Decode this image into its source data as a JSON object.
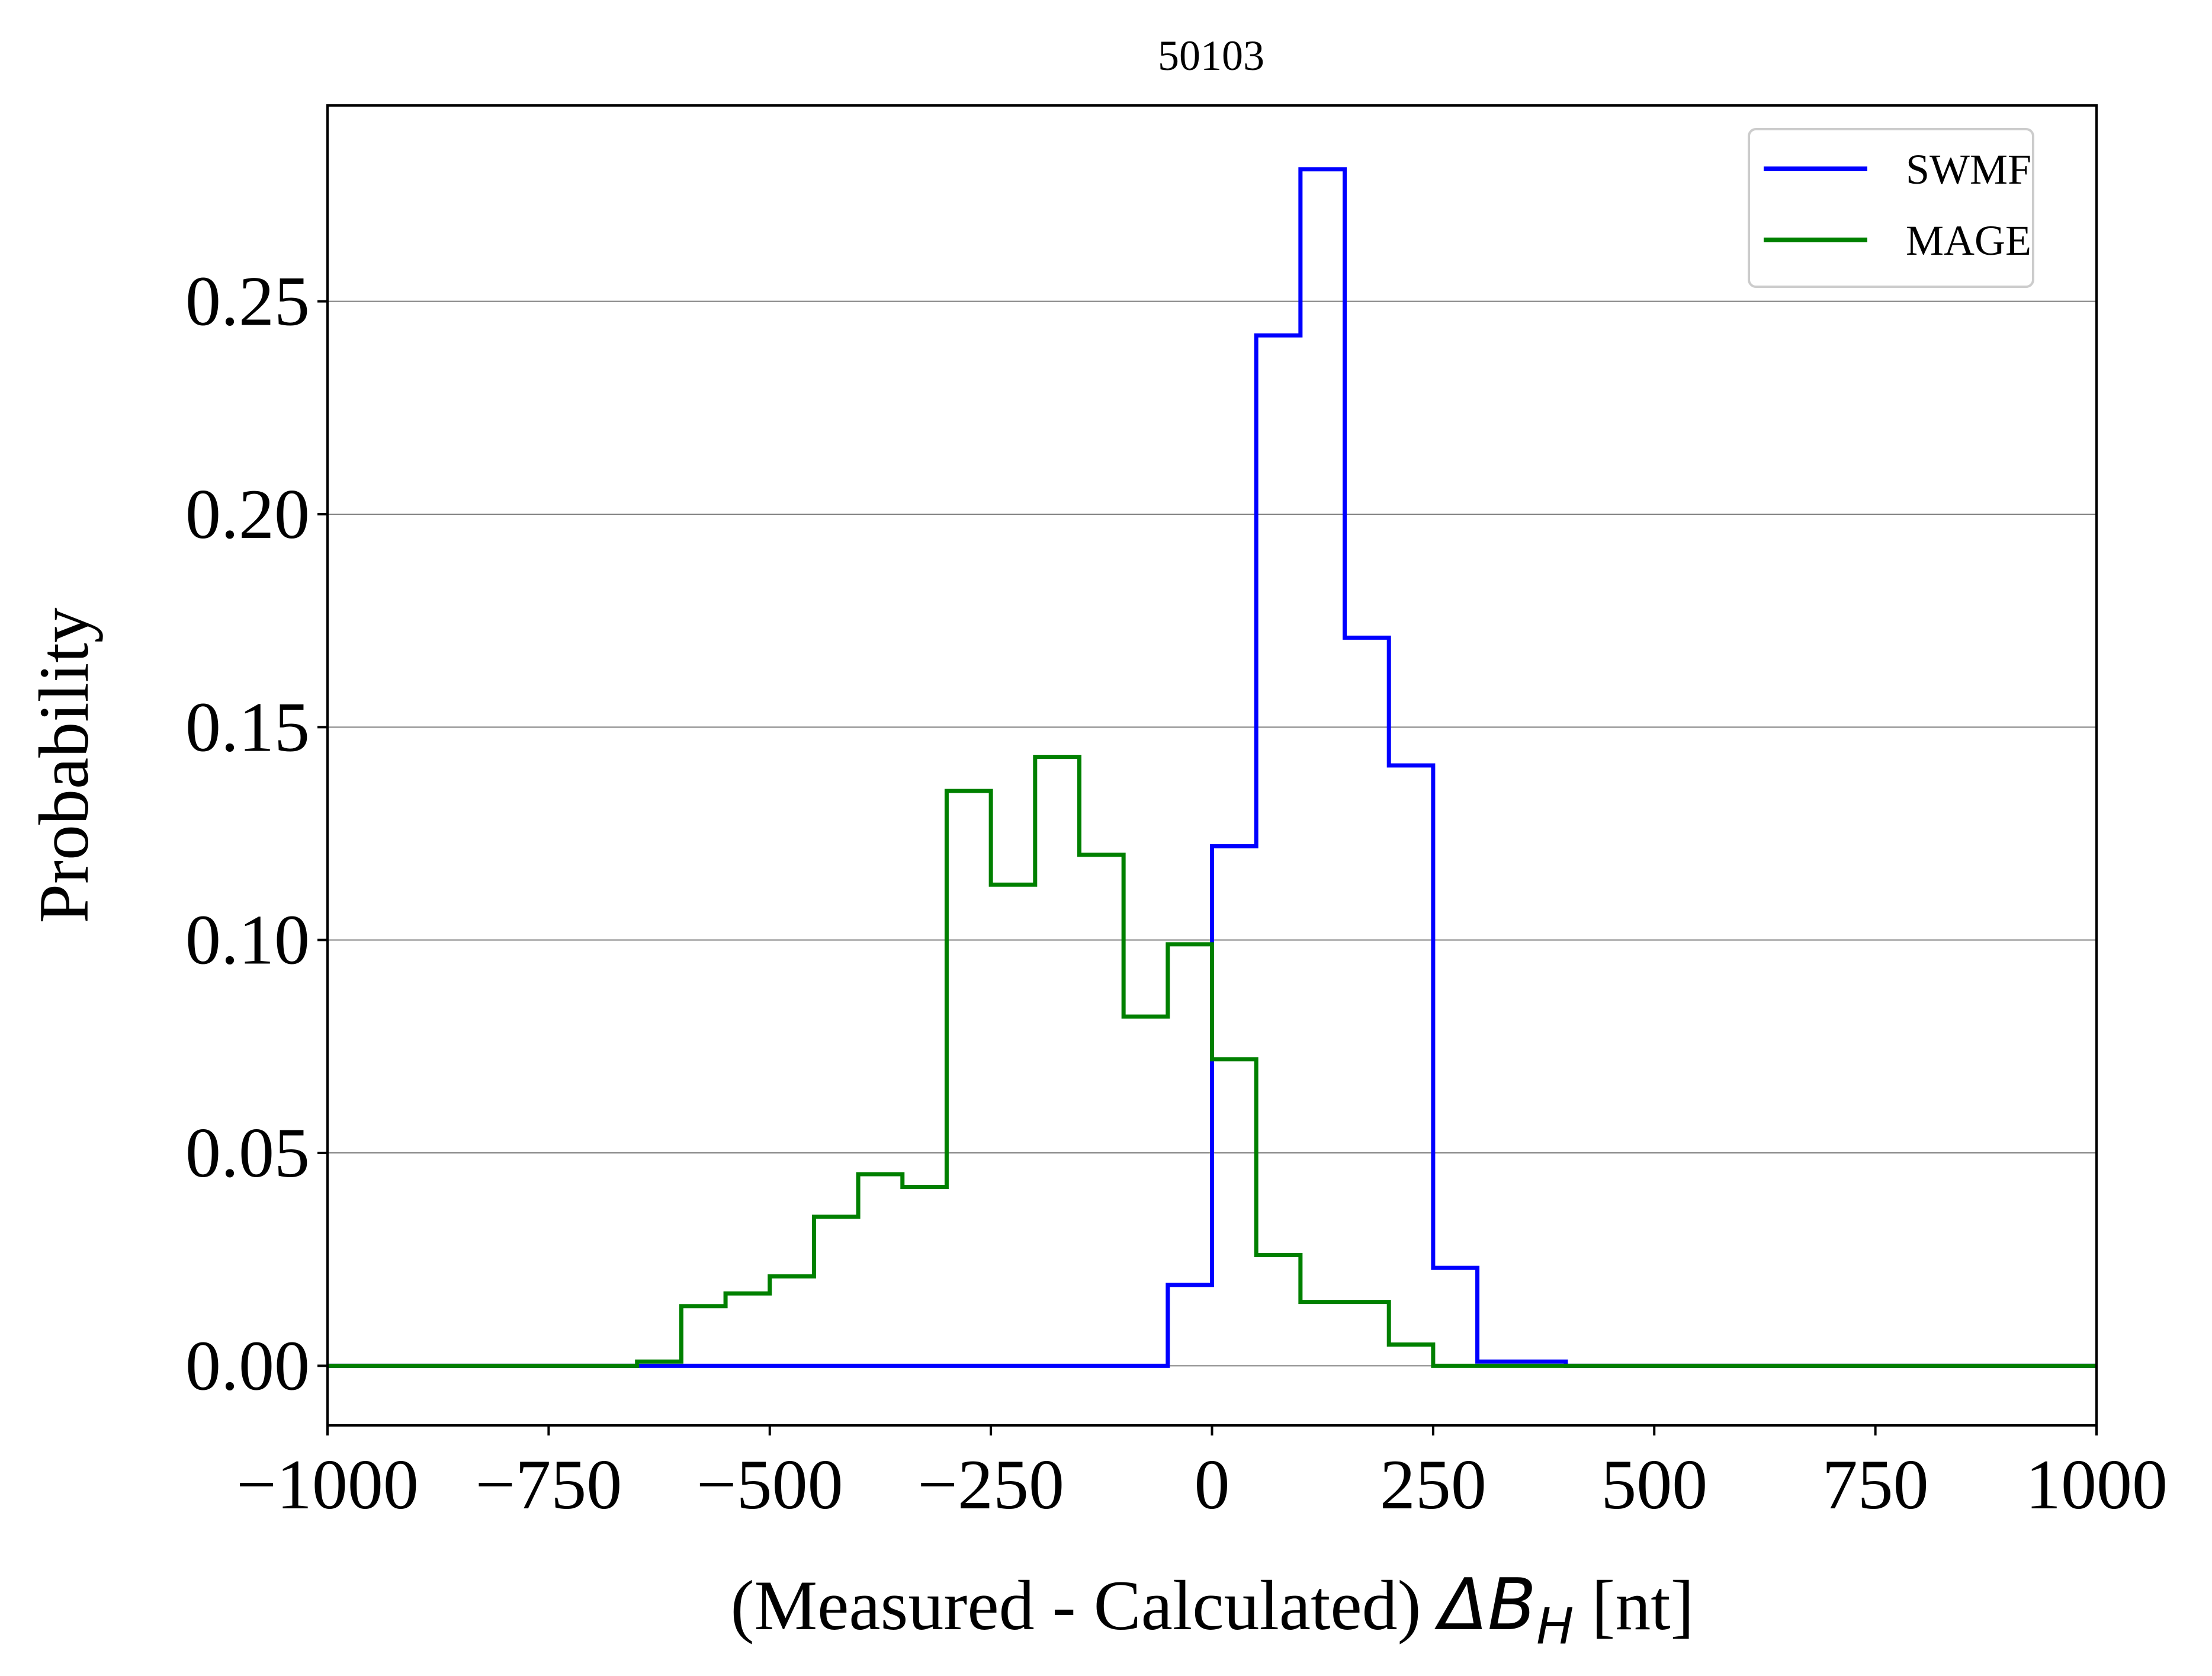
{
  "chart_data": {
    "type": "line",
    "subtype": "step-histogram",
    "title": "50103",
    "xlabel_prefix": "(Measured - Calculated) ",
    "xlabel_math_base": "ΔB",
    "xlabel_math_sub": "H",
    "xlabel_suffix": " [nt]",
    "ylabel": "Probability",
    "xlim": [
      -1000,
      1000
    ],
    "ylim": [
      -0.014,
      0.296
    ],
    "xticks": [
      -1000,
      -750,
      -500,
      -250,
      0,
      250,
      500,
      750,
      1000
    ],
    "xtick_labels": [
      "−1000",
      "−750",
      "−500",
      "−250",
      "0",
      "250",
      "500",
      "750",
      "1000"
    ],
    "yticks": [
      0.0,
      0.05,
      0.1,
      0.15,
      0.2,
      0.25
    ],
    "ytick_labels": [
      "0.00",
      "0.05",
      "0.10",
      "0.15",
      "0.20",
      "0.25"
    ],
    "grid": "horizontal",
    "legend_position": "top-right",
    "bin_edges": [
      -1000,
      -950,
      -900,
      -850,
      -800,
      -750,
      -700,
      -650,
      -600,
      -550,
      -500,
      -450,
      -400,
      -350,
      -300,
      -250,
      -200,
      -150,
      -100,
      -50,
      0,
      50,
      100,
      150,
      200,
      250,
      300,
      350,
      400,
      450,
      500,
      550,
      600,
      650,
      700,
      750,
      800,
      850,
      900,
      950,
      1000
    ],
    "series": [
      {
        "name": "SWMF",
        "color": "#0000ff",
        "values": [
          0,
          0,
          0,
          0,
          0,
          0,
          0,
          0,
          0,
          0,
          0,
          0,
          0,
          0,
          0,
          0,
          0,
          0,
          0,
          0.019,
          0.122,
          0.242,
          0.281,
          0.171,
          0.141,
          0.023,
          0.001,
          0.001,
          0,
          0,
          0,
          0,
          0,
          0,
          0,
          0,
          0,
          0,
          0,
          0
        ]
      },
      {
        "name": "MAGE",
        "color": "#008000",
        "values": [
          0,
          0,
          0,
          0,
          0,
          0,
          0,
          0.001,
          0.014,
          0.017,
          0.021,
          0.035,
          0.045,
          0.042,
          0.135,
          0.113,
          0.143,
          0.12,
          0.082,
          0.099,
          0.072,
          0.026,
          0.015,
          0.015,
          0.005,
          0,
          0,
          0,
          0,
          0,
          0,
          0,
          0,
          0,
          0,
          0,
          0,
          0,
          0,
          0
        ]
      }
    ]
  }
}
